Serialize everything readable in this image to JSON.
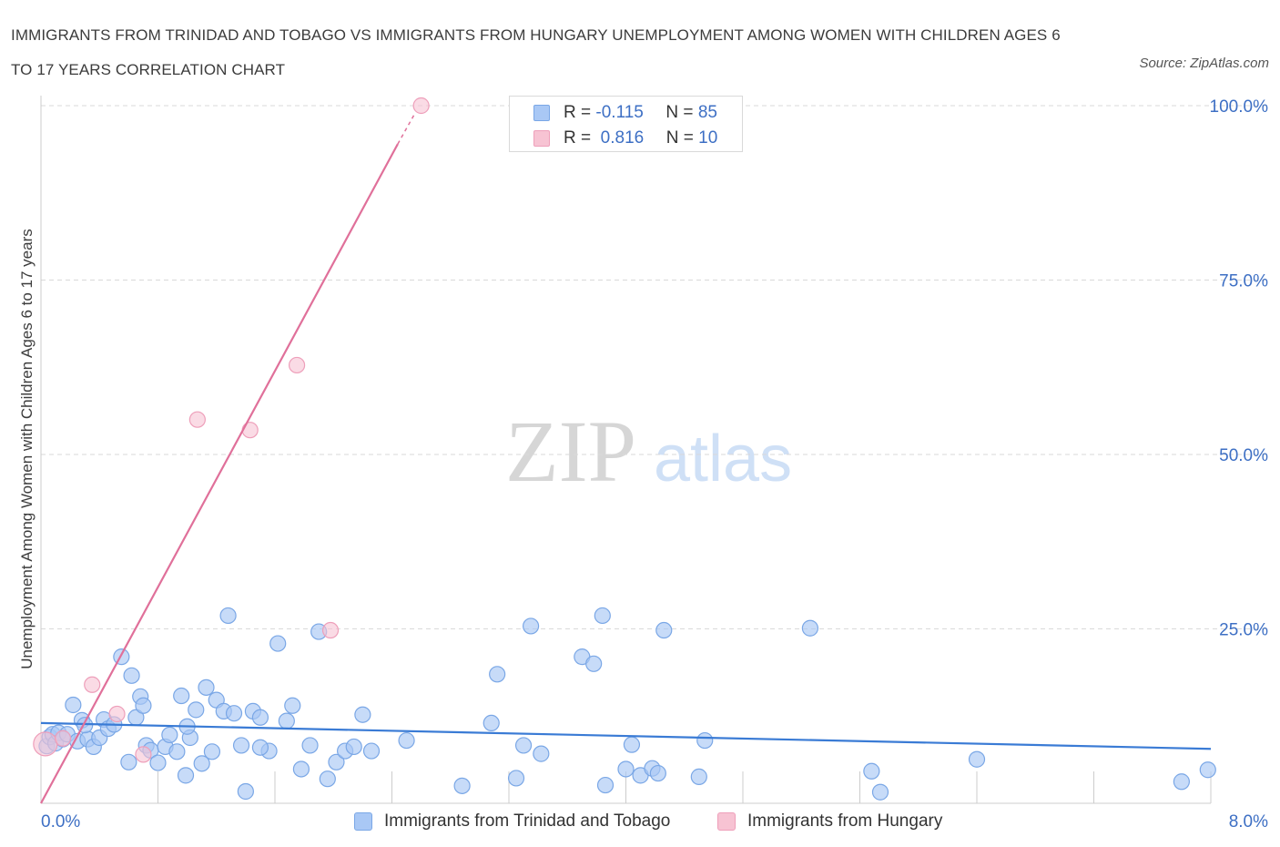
{
  "header": {
    "title": "IMMIGRANTS FROM TRINIDAD AND TOBAGO VS IMMIGRANTS FROM HUNGARY UNEMPLOYMENT AMONG WOMEN WITH CHILDREN AGES 6 TO 17 YEARS CORRELATION CHART",
    "source": "Source: ZipAtlas.com"
  },
  "watermark": {
    "zip": "ZIP",
    "atlas": "atlas"
  },
  "colors": {
    "blue": "#3a7bd5",
    "blue_fill": "#a9c8f5",
    "blue_stroke": "#7aa7e6",
    "pink": "#e0709a",
    "pink_fill": "#f7c3d3",
    "pink_stroke": "#ee9fba",
    "axis_text": "#3d6fc4",
    "grid": "#d9d9d9"
  },
  "legend": {
    "rows": [
      {
        "r_label": "R =",
        "r_value": "-0.115",
        "n_label": "N =",
        "n_value": "85"
      },
      {
        "r_label": "R =",
        "r_value": " 0.816",
        "n_label": "N =",
        "n_value": "10"
      }
    ]
  },
  "chart_data": {
    "type": "scatter",
    "title": "IMMIGRANTS FROM TRINIDAD AND TOBAGO VS IMMIGRANTS FROM HUNGARY UNEMPLOYMENT AMONG WOMEN WITH CHILDREN AGES 6 TO 17 YEARS CORRELATION CHART",
    "xlabel": "",
    "ylabel": "Unemployment Among Women with Children Ages 6 to 17 years",
    "xlim": [
      0,
      8
    ],
    "ylim": [
      0,
      100
    ],
    "x_tick_labels": [
      "0.0%",
      "8.0%"
    ],
    "y_tick_labels": [
      "25.0%",
      "50.0%",
      "75.0%",
      "100.0%"
    ],
    "y_ticks": [
      25,
      50,
      75,
      100
    ],
    "legend_placement": "bottom",
    "series": [
      {
        "name": "Immigrants from Trinidad and Tobago",
        "color": "blue",
        "R": -0.115,
        "N": 85,
        "trend": {
          "x": [
            0.0,
            8.0
          ],
          "y": [
            11.5,
            7.8
          ]
        },
        "points": [
          [
            0.04,
            8.2
          ],
          [
            0.06,
            9.5
          ],
          [
            0.08,
            9.9
          ],
          [
            0.1,
            8.6
          ],
          [
            0.12,
            10.1
          ],
          [
            0.15,
            9.2
          ],
          [
            0.18,
            9.9
          ],
          [
            0.22,
            14.1
          ],
          [
            0.25,
            8.9
          ],
          [
            0.28,
            11.9
          ],
          [
            0.32,
            9.2
          ],
          [
            0.36,
            8.1
          ],
          [
            0.4,
            9.4
          ],
          [
            0.43,
            12.0
          ],
          [
            0.46,
            10.7
          ],
          [
            0.5,
            11.3
          ],
          [
            0.55,
            21.0
          ],
          [
            0.6,
            5.9
          ],
          [
            0.62,
            18.3
          ],
          [
            0.65,
            12.3
          ],
          [
            0.68,
            15.3
          ],
          [
            0.72,
            8.3
          ],
          [
            0.75,
            7.6
          ],
          [
            0.8,
            5.8
          ],
          [
            0.85,
            8.1
          ],
          [
            0.88,
            9.8
          ],
          [
            0.93,
            7.4
          ],
          [
            0.96,
            15.4
          ],
          [
            0.99,
            4.0
          ],
          [
            1.02,
            9.4
          ],
          [
            1.06,
            13.4
          ],
          [
            1.1,
            5.7
          ],
          [
            1.13,
            16.6
          ],
          [
            1.17,
            7.4
          ],
          [
            1.2,
            14.8
          ],
          [
            1.25,
            13.2
          ],
          [
            1.28,
            26.9
          ],
          [
            1.32,
            12.9
          ],
          [
            1.37,
            8.3
          ],
          [
            1.4,
            1.7
          ],
          [
            1.45,
            13.2
          ],
          [
            1.5,
            12.3
          ],
          [
            1.56,
            7.5
          ],
          [
            1.62,
            22.9
          ],
          [
            1.68,
            11.8
          ],
          [
            1.72,
            14.0
          ],
          [
            1.78,
            4.9
          ],
          [
            1.84,
            8.3
          ],
          [
            1.9,
            24.6
          ],
          [
            1.96,
            3.5
          ],
          [
            2.02,
            5.9
          ],
          [
            2.08,
            7.5
          ],
          [
            2.14,
            8.1
          ],
          [
            2.2,
            12.7
          ],
          [
            2.26,
            7.5
          ],
          [
            2.88,
            2.5
          ],
          [
            3.08,
            11.5
          ],
          [
            3.12,
            18.5
          ],
          [
            3.25,
            3.6
          ],
          [
            3.3,
            8.3
          ],
          [
            3.35,
            25.4
          ],
          [
            3.42,
            7.1
          ],
          [
            3.7,
            21.0
          ],
          [
            3.78,
            20.0
          ],
          [
            3.84,
            26.9
          ],
          [
            3.86,
            2.6
          ],
          [
            4.0,
            4.9
          ],
          [
            4.04,
            8.4
          ],
          [
            4.1,
            4.0
          ],
          [
            4.18,
            5.0
          ],
          [
            4.22,
            4.3
          ],
          [
            4.26,
            24.8
          ],
          [
            4.5,
            3.8
          ],
          [
            4.54,
            9.0
          ],
          [
            5.26,
            25.1
          ],
          [
            5.68,
            4.6
          ],
          [
            5.74,
            1.6
          ],
          [
            6.4,
            6.3
          ],
          [
            7.8,
            3.1
          ],
          [
            7.98,
            4.8
          ],
          [
            0.3,
            11.2
          ],
          [
            1.0,
            11.0
          ],
          [
            0.7,
            14.0
          ],
          [
            1.5,
            8.0
          ],
          [
            2.5,
            9.0
          ]
        ]
      },
      {
        "name": "Immigrants from Hungary",
        "color": "pink",
        "R": 0.816,
        "N": 10,
        "trend": {
          "x": [
            0.0,
            2.44
          ],
          "y": [
            0.0,
            94.5
          ],
          "dashed_extension": {
            "x": [
              2.44,
              2.56
            ],
            "y": [
              94.5,
              99.0
            ]
          }
        },
        "points": [
          [
            0.03,
            8.5
          ],
          [
            0.15,
            9.3
          ],
          [
            0.35,
            17.0
          ],
          [
            0.52,
            12.8
          ],
          [
            0.7,
            7.0
          ],
          [
            1.07,
            55.0
          ],
          [
            1.43,
            53.5
          ],
          [
            1.75,
            62.8
          ],
          [
            1.98,
            24.8
          ],
          [
            2.6,
            100.0
          ]
        ]
      }
    ]
  }
}
